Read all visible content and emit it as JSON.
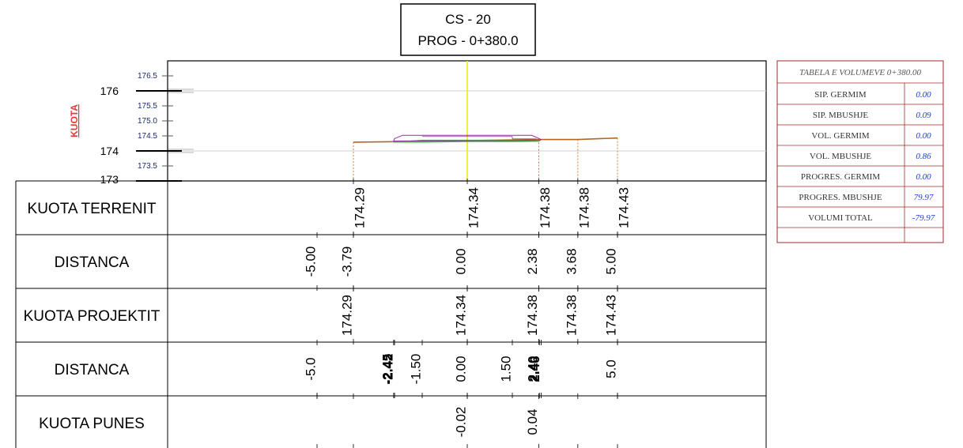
{
  "title": {
    "line1": "CS - 20",
    "line2": "PROG - 0+380.0"
  },
  "axis": {
    "label": "KUOTA",
    "label_color": "#e53935",
    "major_ticks": [
      "176",
      "174",
      "173"
    ],
    "minor_ticks": [
      "176.5",
      "175.5",
      "175.0",
      "174.5",
      "173.5"
    ]
  },
  "rows": [
    {
      "label": "KUOTA TERRENIT"
    },
    {
      "label": "DISTANCA"
    },
    {
      "label": "KUOTA PROJEKTIT"
    },
    {
      "label": "DISTANCA"
    },
    {
      "label": "KUOTA PUNES"
    }
  ],
  "terrain_points": [
    {
      "d": -3.79,
      "z": 174.29
    },
    {
      "d": 0.0,
      "z": 174.34
    },
    {
      "d": 2.38,
      "z": 174.38
    },
    {
      "d": 3.68,
      "z": 174.38
    },
    {
      "d": 5.0,
      "z": 174.43
    }
  ],
  "kuota_terrenit": [
    "174.29",
    "174.34",
    "174.38",
    "174.38",
    "174.43"
  ],
  "distanca_1": [
    "-5.00",
    "-3.79",
    "0.00",
    "2.38",
    "3.68",
    "5.00"
  ],
  "kuota_projektit": [
    "174.29",
    "174.34",
    "174.38",
    "174.38",
    "174.43"
  ],
  "distanca_2": [
    "-5.0",
    "-2.45",
    "-2.42",
    "-1.50",
    "0.00",
    "1.50",
    "2.40",
    "2.46",
    "5.0"
  ],
  "kuota_punes": [
    "-0.02",
    "0.04"
  ],
  "colors": {
    "terrain": "#b5651d",
    "design": "#9c27b0",
    "fill": "#22cc22",
    "centerline": "#f2ee00",
    "guide": "#c8843c",
    "table_border": "#a52a2a"
  },
  "volume_table": {
    "title": "TABELA E VOLUMEVE 0+380.00",
    "rows": [
      {
        "label": "SIP. GERMIM",
        "value": "0.00"
      },
      {
        "label": "SIP. MBUSHJE",
        "value": "0.09"
      },
      {
        "label": "VOL. GERMIM",
        "value": "0.00"
      },
      {
        "label": "VOL. MBUSHJE",
        "value": "0.86"
      },
      {
        "label": "PROGRES. GERMIM",
        "value": "0.00"
      },
      {
        "label": "PROGRES. MBUSHJE",
        "value": "79.97"
      },
      {
        "label": "VOLUMI TOTAL",
        "value": "-79.97"
      }
    ]
  }
}
